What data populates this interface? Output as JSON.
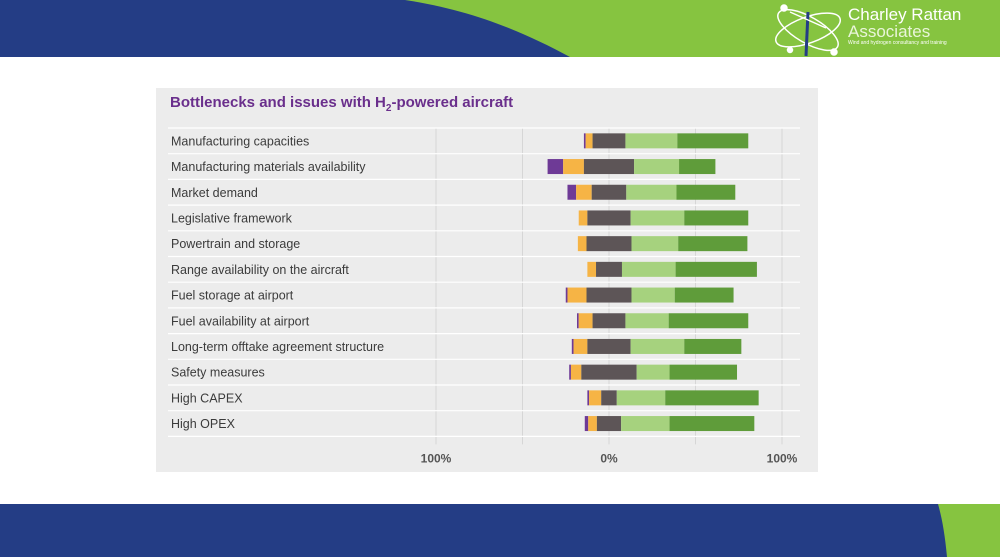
{
  "logo": {
    "name_line1": "Charley Rattan",
    "name_line2": "Associates",
    "tagline": "Wind and hydrogen consultancy and training"
  },
  "colors": {
    "navy": "#243d85",
    "green": "#86c440",
    "purple": "#6e3a96",
    "orange": "#f6b445",
    "dark_gray": "#5d5557",
    "light_green": "#a6d27e",
    "dark_green": "#5f9c3a"
  },
  "chart_data": {
    "type": "bar",
    "orientation": "horizontal",
    "stacked": "diverging",
    "title_prefix": "Bottlenecks and issues with H",
    "title_sub": "2",
    "title_suffix": "-powered aircraft",
    "categories": [
      "Manufacturing capacities",
      "Manufacturing materials availability",
      "Market demand",
      "Legislative framework",
      "Powertrain and storage",
      "Range availability on the aircraft",
      "Fuel storage at airport",
      "Fuel availability at airport",
      "Long-term offtake agreement structure",
      "Safety measures",
      "High CAPEX",
      "High OPEX"
    ],
    "series": [
      {
        "color": "#6e3a96",
        "side": "negative",
        "values": [
          1,
          9,
          5,
          0,
          0,
          0,
          1,
          1,
          1,
          1,
          1,
          2
        ]
      },
      {
        "color": "#f6b445",
        "side": "negative",
        "values": [
          4,
          12,
          9,
          5,
          5,
          5,
          11,
          8,
          8,
          6,
          7,
          5
        ]
      },
      {
        "color": "#5d5557",
        "side": "neutral",
        "values": [
          19,
          29,
          20,
          25,
          26,
          15,
          26,
          19,
          25,
          32,
          9,
          14
        ]
      },
      {
        "color": "#a6d27e",
        "side": "positive",
        "values": [
          30,
          26,
          29,
          31,
          27,
          31,
          25,
          25,
          31,
          19,
          28,
          28
        ]
      },
      {
        "color": "#5f9c3a",
        "side": "positive",
        "values": [
          41,
          21,
          34,
          37,
          40,
          47,
          34,
          46,
          33,
          39,
          54,
          49
        ]
      }
    ],
    "xlim": [
      -100,
      100
    ],
    "x_ticks": [
      {
        "value": -100,
        "label": "100%"
      },
      {
        "value": 0,
        "label": "0%"
      },
      {
        "value": 100,
        "label": "100%"
      }
    ],
    "grid": true
  }
}
